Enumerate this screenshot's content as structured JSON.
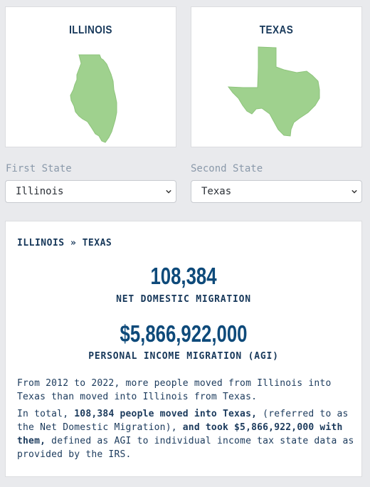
{
  "first_state": {
    "map_title": "ILLINOIS",
    "select_label": "First State",
    "selected": "Illinois"
  },
  "second_state": {
    "map_title": "TEXAS",
    "select_label": "Second State",
    "selected": "Texas"
  },
  "result": {
    "route_from": "ILLINOIS",
    "route_sep": "»",
    "route_to": "TEXAS",
    "net_migration": "108,384",
    "net_migration_caption": "NET DOMESTIC MIGRATION",
    "agi": "$5,866,922,000",
    "agi_caption": "PERSONAL INCOME MIGRATION (AGI)",
    "para1": "From 2012 to 2022, more people moved from Illinois into Texas than moved into Illinois from Texas.",
    "para2_a": "In total, ",
    "para2_b": "108,384 people moved into Texas,",
    "para2_c": " (referred to as the Net Domestic Migration), ",
    "para2_d": "and took $5,866,922,000 with them,",
    "para2_e": " defined as AGI to individual income tax state data as provided by the IRS."
  },
  "colors": {
    "map_fill": "#9fd18e",
    "big_number": "#0e4a7a",
    "text": "#1b3a5c",
    "label": "#8a99aa",
    "background": "#e9eaed"
  }
}
